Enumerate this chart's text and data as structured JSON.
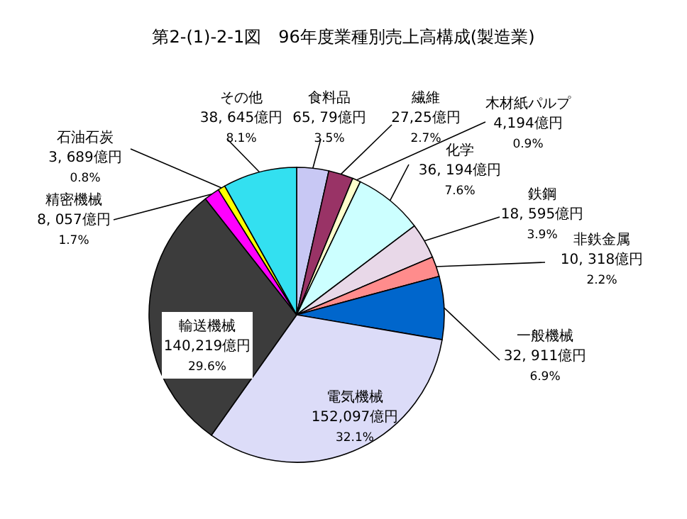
{
  "chart_data": {
    "type": "pie",
    "title": "第2-(1)-2-1図　96年度業種別売上高構成(製造業)",
    "categories": [
      "食料品",
      "繊維",
      "木材紙パルプ",
      "化学",
      "鉄鋼",
      "非鉄金属",
      "一般機械",
      "電気機械",
      "輸送機械",
      "精密機械",
      "石油石炭",
      "その他"
    ],
    "values": [
      3.5,
      2.7,
      0.9,
      7.6,
      3.9,
      2.2,
      6.9,
      32.1,
      29.6,
      1.7,
      0.8,
      8.1
    ],
    "value_labels": [
      "65, 79億円\n3.5%",
      "27,25億円\n2.7%",
      "4,194億円\n0.9%",
      "36, 194億円\n7.6%",
      "18, 595億円\n3.9%",
      "10, 318億円\n2.2%",
      "32, 911億円\n6.9%",
      "152,097億円\n32.1%",
      "140,219億円\n29.6%",
      "8, 057億円\n1.7%",
      "3, 689億円\n0.8%",
      "38, 645億円\n8.1%"
    ],
    "colors": [
      "#c8c8f4",
      "#993366",
      "#ffffcc",
      "#ccffff",
      "#e8d8e8",
      "#ff8c8c",
      "#0066cc",
      "#dcdcf8",
      "#3c3c3c",
      "#ff00ff",
      "#ffff00",
      "#33e0f0"
    ]
  }
}
